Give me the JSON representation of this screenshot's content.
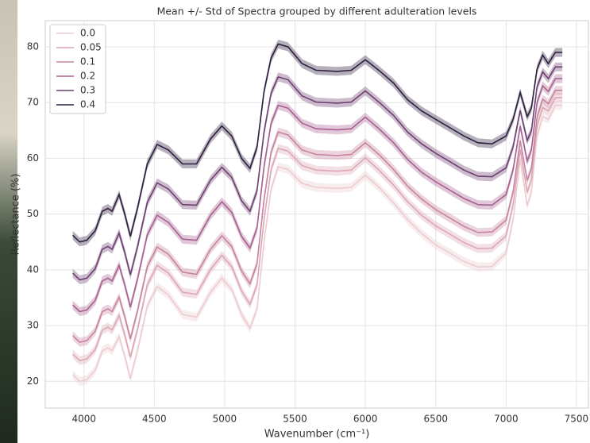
{
  "chart_data": {
    "type": "line",
    "title": "Mean +/- Std of Spectra grouped by different adulteration levels",
    "xlabel": "Wavenumber (cm⁻¹)",
    "ylabel": "Reflectance (%)",
    "x": [
      3920,
      3970,
      4020,
      4080,
      4130,
      4170,
      4200,
      4250,
      4290,
      4330,
      4380,
      4450,
      4520,
      4600,
      4700,
      4800,
      4900,
      4980,
      5050,
      5120,
      5180,
      5230,
      5280,
      5330,
      5380,
      5450,
      5550,
      5650,
      5800,
      5900,
      6000,
      6100,
      6200,
      6300,
      6400,
      6500,
      6600,
      6700,
      6800,
      6900,
      7000,
      7050,
      7100,
      7150,
      7180,
      7220,
      7260,
      7300,
      7350,
      7400
    ],
    "series": [
      {
        "name": "0.0",
        "color": "#eccbcf",
        "std": 0.8,
        "values": [
          21.2,
          20.0,
          20.3,
          22.0,
          25.5,
          26.0,
          25.5,
          28.0,
          24.5,
          20.5,
          25.5,
          33.5,
          37.0,
          35.5,
          32.0,
          31.5,
          36.0,
          38.5,
          36.5,
          32.0,
          29.5,
          33.0,
          45.0,
          54.5,
          58.5,
          58.0,
          55.5,
          54.8,
          54.6,
          54.8,
          57.0,
          54.7,
          52.0,
          49.0,
          46.5,
          44.5,
          43.0,
          41.5,
          40.5,
          40.6,
          43.0,
          49.0,
          59.8,
          51.5,
          54.0,
          64.0,
          67.5,
          67.0,
          69.5,
          69.5
        ]
      },
      {
        "name": "0.05",
        "color": "#dca6b4",
        "std": 0.8,
        "values": [
          24.9,
          23.7,
          24.0,
          25.7,
          29.2,
          29.7,
          29.2,
          31.8,
          28.3,
          24.3,
          29.3,
          37.3,
          40.8,
          39.4,
          36.0,
          35.6,
          40.1,
          42.6,
          40.6,
          36.2,
          33.8,
          37.3,
          49.0,
          58.0,
          61.8,
          61.3,
          58.7,
          57.9,
          57.7,
          57.9,
          60.1,
          57.8,
          55.2,
          52.2,
          49.8,
          47.9,
          46.4,
          44.9,
          43.8,
          43.9,
          46.1,
          51.7,
          61.6,
          53.9,
          56.2,
          65.8,
          69.1,
          68.5,
          70.9,
          70.9
        ]
      },
      {
        "name": "0.1",
        "color": "#c7839e",
        "std": 0.8,
        "values": [
          28.2,
          27.0,
          27.3,
          29.0,
          32.5,
          33.0,
          32.5,
          35.1,
          31.6,
          27.6,
          32.6,
          40.6,
          44.1,
          42.8,
          39.6,
          39.2,
          43.7,
          46.1,
          44.2,
          39.8,
          37.5,
          41.1,
          52.6,
          61.1,
          64.7,
          64.2,
          61.5,
          60.7,
          60.5,
          60.7,
          62.8,
          60.6,
          58.0,
          55.0,
          52.7,
          50.8,
          49.3,
          47.8,
          46.7,
          46.8,
          48.9,
          54.0,
          63.2,
          56.0,
          58.2,
          67.4,
          70.6,
          69.8,
          72.2,
          72.2
        ]
      },
      {
        "name": "0.2",
        "color": "#a6608f",
        "std": 0.8,
        "values": [
          33.7,
          32.5,
          32.8,
          34.5,
          38.0,
          38.5,
          38.0,
          40.8,
          37.3,
          33.3,
          38.3,
          46.3,
          49.8,
          48.5,
          45.5,
          45.3,
          49.8,
          52.2,
          50.3,
          46.0,
          43.9,
          47.5,
          58.5,
          66.3,
          69.5,
          69.0,
          66.3,
          65.3,
          65.1,
          65.3,
          67.4,
          65.2,
          62.8,
          59.8,
          57.5,
          55.8,
          54.3,
          52.8,
          51.7,
          51.6,
          53.5,
          58.0,
          65.8,
          59.5,
          61.5,
          70.0,
          73.0,
          72.0,
          74.3,
          74.3
        ]
      },
      {
        "name": "0.3",
        "color": "#6d3f70",
        "std": 0.8,
        "values": [
          39.4,
          38.2,
          38.5,
          40.2,
          43.7,
          44.2,
          43.7,
          46.6,
          43.1,
          39.1,
          44.1,
          52.1,
          55.6,
          54.5,
          51.7,
          51.6,
          56.1,
          58.4,
          56.6,
          52.4,
          50.5,
          54.2,
          64.7,
          71.7,
          74.6,
          74.1,
          71.2,
          70.1,
          69.9,
          70.1,
          72.1,
          70.0,
          67.7,
          64.7,
          62.6,
          60.9,
          59.4,
          57.9,
          56.8,
          56.7,
          58.3,
          62.1,
          68.6,
          63.2,
          64.9,
          72.8,
          75.5,
          74.3,
          76.4,
          76.4
        ]
      },
      {
        "name": "0.4",
        "color": "#2d1e3e",
        "std": 0.8,
        "values": [
          46.2,
          45.0,
          45.3,
          47,
          50.5,
          51,
          50.5,
          53.5,
          50,
          46,
          51,
          59,
          62.5,
          61.5,
          59,
          59,
          63.5,
          65.8,
          64,
          60,
          58.2,
          62,
          72,
          78,
          80.5,
          80,
          77,
          75.8,
          75.6,
          75.8,
          77.7,
          75.7,
          73.5,
          70.5,
          68.5,
          67,
          65.5,
          64,
          62.8,
          62.6,
          64,
          67,
          71.8,
          67.5,
          69,
          76,
          78.5,
          77,
          79,
          79
        ]
      }
    ],
    "xlim": [
      3725,
      7585
    ],
    "ylim": [
      15.2,
      84.7
    ],
    "xticks": [
      4000,
      4500,
      5000,
      5500,
      6000,
      6500,
      7000,
      7500
    ],
    "yticks": [
      20,
      30,
      40,
      50,
      60,
      70,
      80
    ],
    "grid": true,
    "legend": "upper left"
  }
}
